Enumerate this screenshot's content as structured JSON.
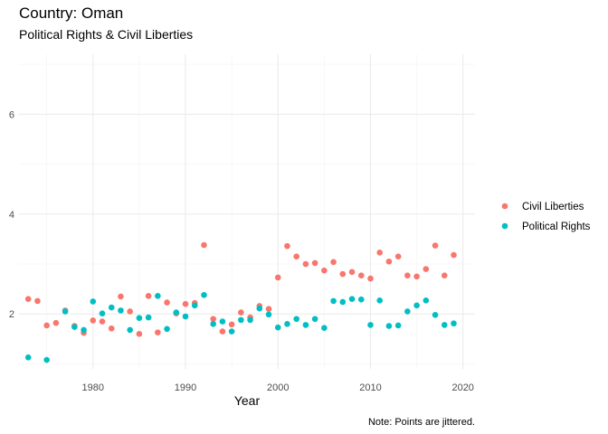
{
  "chart_data": {
    "type": "scatter",
    "title": "Country: Oman",
    "subtitle": "Political Rights & Civil Liberties",
    "xlabel": "Year",
    "ylabel": "",
    "caption": "Note: Points are jittered.",
    "xlim": [
      1972,
      2021.3
    ],
    "ylim": [
      0.9,
      7.2
    ],
    "xticks": [
      1980,
      1990,
      2000,
      2010,
      2020
    ],
    "yticks": [
      2,
      4,
      6
    ],
    "grid": true,
    "legend_position": "right",
    "series": [
      {
        "name": "Civil Liberties",
        "color": "#F8766D",
        "x": [
          1973,
          1974,
          1975,
          1976,
          1977,
          1978,
          1979,
          1980,
          1981,
          1982,
          1983,
          1984,
          1985,
          1986,
          1987,
          1988,
          1989,
          1990,
          1991,
          1992,
          1993,
          1994,
          1995,
          1996,
          1997,
          1998,
          1999,
          2000,
          2001,
          2002,
          2003,
          2004,
          2005,
          2006,
          2007,
          2008,
          2009,
          2010,
          2011,
          2012,
          2013,
          2014,
          2015,
          2016,
          2017,
          2018,
          2019
        ],
        "y": [
          2.3,
          2.26,
          1.77,
          1.82,
          2.07,
          1.76,
          1.62,
          1.87,
          1.85,
          1.71,
          2.35,
          2.05,
          1.6,
          2.36,
          1.63,
          2.23,
          2.01,
          2.2,
          2.22,
          3.38,
          1.9,
          1.65,
          1.79,
          2.03,
          1.93,
          2.16,
          2.1,
          2.73,
          3.36,
          3.15,
          3.0,
          3.02,
          2.87,
          3.04,
          2.8,
          2.84,
          2.77,
          2.71,
          3.23,
          3.05,
          3.15,
          2.77,
          2.75,
          2.9,
          3.37,
          2.77,
          3.18
        ]
      },
      {
        "name": "Political Rights",
        "color": "#00BFC4",
        "x": [
          1973,
          1975,
          1977,
          1978,
          1979,
          1980,
          1981,
          1982,
          1983,
          1984,
          1985,
          1986,
          1987,
          1988,
          1989,
          1990,
          1991,
          1992,
          1993,
          1994,
          1995,
          1996,
          1997,
          1998,
          1999,
          2000,
          2001,
          2002,
          2003,
          2004,
          2005,
          2006,
          2007,
          2008,
          2009,
          2010,
          2011,
          2012,
          2013,
          2014,
          2015,
          2016,
          2017,
          2018,
          2019
        ],
        "y": [
          1.13,
          1.08,
          2.05,
          1.74,
          1.68,
          2.25,
          2.01,
          2.13,
          2.07,
          1.68,
          1.92,
          1.93,
          2.36,
          1.7,
          2.03,
          1.95,
          2.17,
          2.38,
          1.8,
          1.85,
          1.65,
          1.88,
          1.88,
          2.11,
          1.99,
          1.73,
          1.8,
          1.9,
          1.78,
          1.9,
          1.72,
          2.26,
          2.24,
          2.3,
          2.29,
          1.78,
          2.27,
          1.76,
          1.77,
          2.05,
          2.17,
          2.27,
          1.98,
          1.78,
          1.81
        ]
      }
    ]
  }
}
